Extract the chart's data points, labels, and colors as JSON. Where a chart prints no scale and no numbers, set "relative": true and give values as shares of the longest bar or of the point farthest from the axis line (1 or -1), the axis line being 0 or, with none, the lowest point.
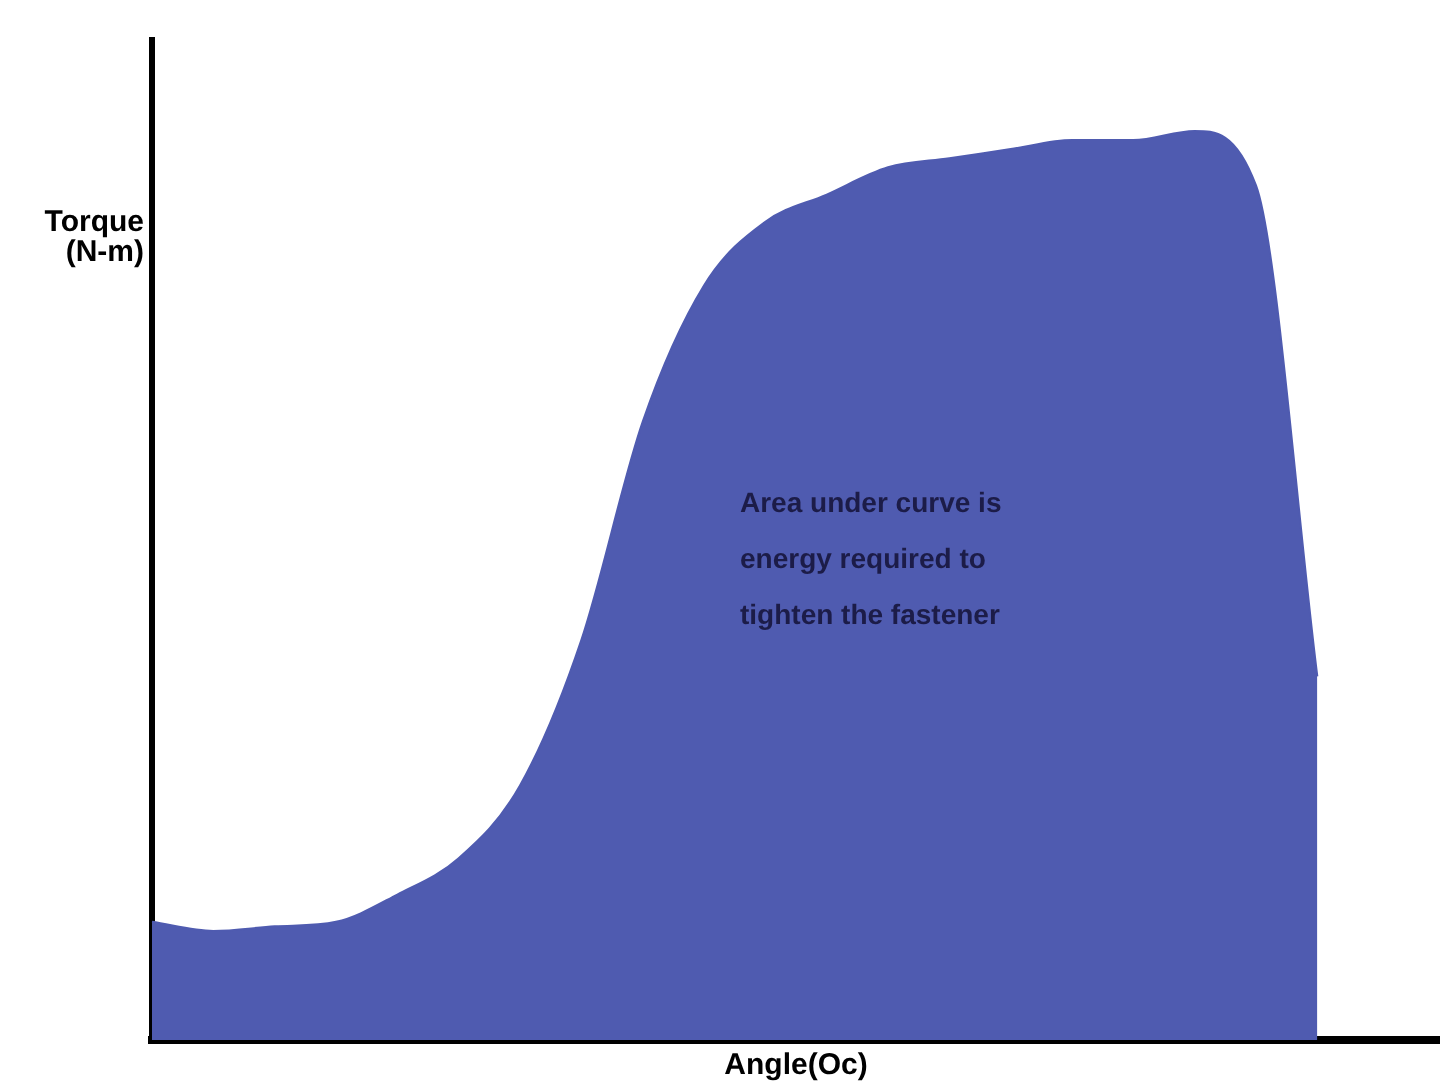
{
  "chart_data": {
    "type": "area",
    "relative": true,
    "xlabel": "Angle(Oc)",
    "ylabel": "Torque (N-m)",
    "annotations": [
      "Area under curve is energy required to tighten the fastener"
    ],
    "categories": [
      null,
      null,
      null,
      null,
      null,
      null,
      null,
      null,
      null,
      null,
      null,
      null,
      null,
      null,
      null,
      null,
      null,
      null,
      null,
      null,
      null,
      null
    ],
    "series": [
      {
        "color": "#4f5bb0",
        "values": [
          0.13,
          0.12,
          0.125,
          0.13,
          0.16,
          0.2,
          0.28,
          0.44,
          0.68,
          0.83,
          0.9,
          0.93,
          0.96,
          0.97,
          0.98,
          0.99,
          0.99,
          1,
          0.94,
          0.4,
          null,
          null
        ]
      }
    ],
    "grid": false,
    "legend": false
  }
}
